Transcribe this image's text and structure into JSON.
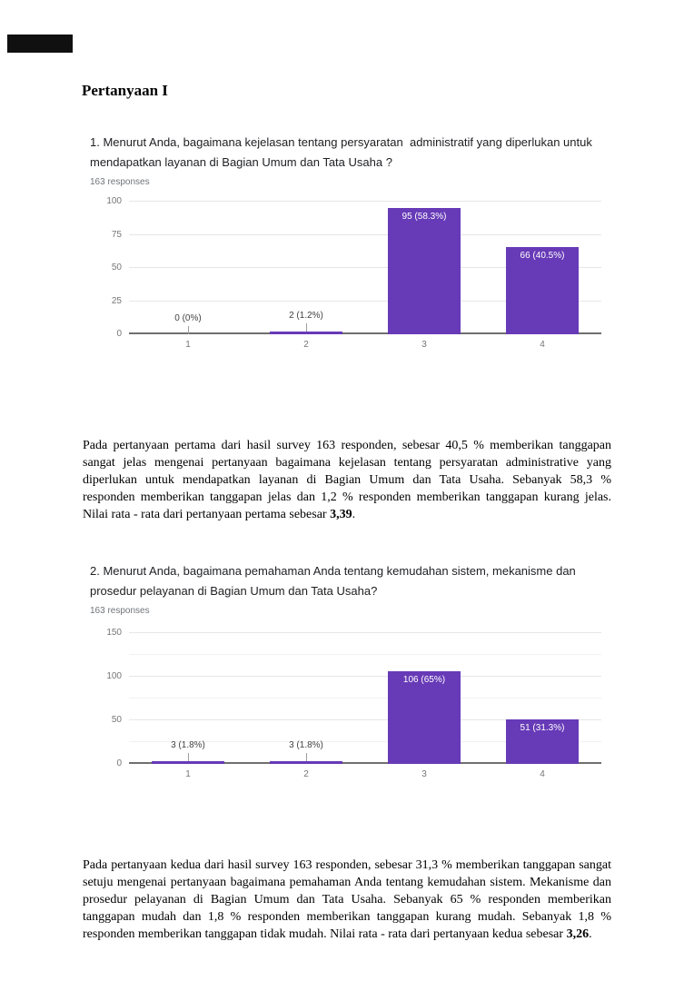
{
  "page": {
    "title": "Pertanyaan I"
  },
  "questions": [
    {
      "lines": [
        "1. Menurut Anda, bagaimana kejelasan tentang persyaratan  administratif yang diperlukan untuk",
        "mendapatkan layanan di Bagian Umum dan Tata Usaha ?"
      ],
      "responses_label": "163 responses"
    },
    {
      "lines": [
        "2. Menurut Anda, bagaimana pemahaman Anda tentang kemudahan sistem, mekanisme dan",
        "prosedur pelayanan di Bagian Umum dan Tata Usaha?"
      ],
      "responses_label": "163 responses"
    }
  ],
  "chart_data": [
    {
      "type": "bar",
      "categories": [
        "1",
        "2",
        "3",
        "4"
      ],
      "values": [
        0,
        2,
        95,
        66
      ],
      "value_labels": [
        "0 (0%)",
        "2 (1.2%)",
        "95 (58.3%)",
        "66 (40.5%)"
      ],
      "ylim": [
        0,
        100
      ],
      "yticks": [
        0,
        25,
        50,
        75,
        100
      ],
      "minor_yticks": [],
      "xlabel": "",
      "ylabel": "",
      "grid": true,
      "legend": false,
      "bar_color": "#673ab7"
    },
    {
      "type": "bar",
      "categories": [
        "1",
        "2",
        "3",
        "4"
      ],
      "values": [
        3,
        3,
        106,
        51
      ],
      "value_labels": [
        "3 (1.8%)",
        "3 (1.8%)",
        "106 (65%)",
        "51 (31.3%)"
      ],
      "ylim": [
        0,
        150
      ],
      "yticks": [
        0,
        50,
        100,
        150
      ],
      "minor_yticks": [
        25,
        75,
        125
      ],
      "xlabel": "",
      "ylabel": "",
      "grid": true,
      "legend": false,
      "bar_color": "#673ab7"
    }
  ],
  "paragraphs": [
    {
      "lines": [
        "Pada pertanyaan pertama dari hasil survey 163 responden, sebesar 40,5 % memberikan tanggapan",
        "sangat jelas mengenai pertanyaan bagaimana kejelasan tentang persyaratan administrative yang",
        "diperlukan untuk mendapatkan layanan di Bagian Umum dan Tata Usaha. Sebanyak 58,3 %",
        "responden memberikan tanggapan jelas dan 1,2 % responden memberikan tanggapan kurang jelas."
      ],
      "last_line_prefix": "Nilai rata - rata dari pertanyaan pertama sebesar ",
      "bold_value": "3,39",
      "suffix": "."
    },
    {
      "lines": [
        "Pada pertanyaan kedua dari hasil survey 163 responden, sebesar 31,3 % memberikan tanggapan sangat",
        "setuju mengenai pertanyaan bagaimana pemahaman Anda tentang kemudahan sistem. Mekanisme dan",
        "prosedur pelayanan di Bagian Umum dan Tata Usaha. Sebanyak 65 % responden memberikan",
        "tanggapan mudah dan 1,8 % responden memberikan tanggapan kurang mudah. Sebanyak 1,8 %"
      ],
      "last_line_prefix": "responden memberikan tanggapan tidak mudah. Nilai rata - rata dari pertanyaan kedua sebesar ",
      "bold_value": "3,26",
      "suffix": "."
    }
  ],
  "colors": {
    "bar_purple": "#673ab7",
    "gridline": "#e6e6e6",
    "axis_baseline": "#6f6f6f",
    "tick_text": "#757575",
    "question_text": "#202124",
    "responses_text": "#70757a",
    "inside_label": "#ffffff",
    "outside_label": "#424242"
  }
}
